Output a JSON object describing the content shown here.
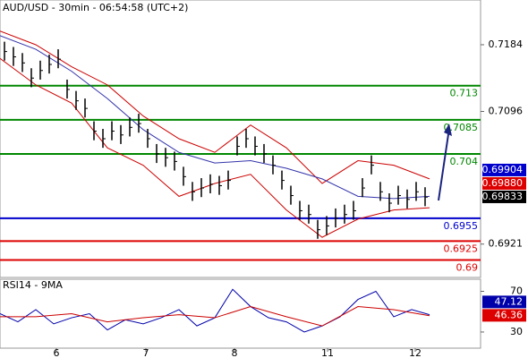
{
  "chart_data": [
    {
      "type": "ohlc",
      "title": "AUD/USD - 30min - 06:54:58 (UTC+2)",
      "x": [
        0.5,
        1.5,
        2.5,
        3.5,
        4.5,
        5.5,
        6.5,
        7.5,
        8.5,
        9.5,
        10.5,
        11.5,
        12.5,
        13.5,
        14.5,
        15.5,
        16.5,
        17.5,
        18.5,
        19.5,
        20.5,
        21.5,
        22.5,
        23.5,
        24.5,
        25.5,
        26.5,
        27.5,
        28.5,
        29.5,
        30.5,
        31.5,
        32.5,
        33.5,
        34.5,
        35.5,
        36.5,
        37.5,
        38.5,
        39.5,
        40.5,
        41.5,
        42.5,
        43.5,
        44.5,
        45.5,
        46.5,
        47.5
      ],
      "high": [
        0.7188,
        0.7181,
        0.7173,
        0.7153,
        0.7163,
        0.7171,
        0.7178,
        0.7138,
        0.7123,
        0.7113,
        0.7083,
        0.7073,
        0.7083,
        0.7078,
        0.7088,
        0.7093,
        0.7073,
        0.7053,
        0.7048,
        0.7043,
        0.7023,
        0.7003,
        0.7008,
        0.7013,
        0.7011,
        0.7018,
        0.7063,
        0.7073,
        0.7063,
        0.7053,
        0.7038,
        0.7018,
        0.6998,
        0.6978,
        0.6973,
        0.6953,
        0.6958,
        0.6968,
        0.6973,
        0.6978,
        0.7008,
        0.7038,
        0.7003,
        0.6988,
        0.6998,
        0.6993,
        0.7003,
        0.6996
      ],
      "low": [
        0.7163,
        0.7156,
        0.7148,
        0.7128,
        0.7138,
        0.7146,
        0.7153,
        0.7113,
        0.7098,
        0.7088,
        0.7058,
        0.7048,
        0.7058,
        0.7053,
        0.7063,
        0.7068,
        0.7048,
        0.7028,
        0.7023,
        0.7018,
        0.6998,
        0.6978,
        0.6983,
        0.6988,
        0.6986,
        0.6993,
        0.7038,
        0.7048,
        0.7038,
        0.7028,
        0.7013,
        0.6993,
        0.6973,
        0.6953,
        0.6948,
        0.6928,
        0.6933,
        0.6943,
        0.6948,
        0.6953,
        0.6983,
        0.7013,
        0.6978,
        0.6963,
        0.6973,
        0.6968,
        0.6978,
        0.6971
      ],
      "close": [
        0.7175,
        0.7168,
        0.716,
        0.714,
        0.715,
        0.7158,
        0.7165,
        0.7125,
        0.711,
        0.71,
        0.707,
        0.706,
        0.707,
        0.7065,
        0.7075,
        0.708,
        0.706,
        0.704,
        0.7035,
        0.703,
        0.701,
        0.699,
        0.6995,
        0.7,
        0.6998,
        0.7005,
        0.705,
        0.706,
        0.705,
        0.704,
        0.7025,
        0.7005,
        0.6985,
        0.6965,
        0.696,
        0.694,
        0.6945,
        0.6955,
        0.696,
        0.6965,
        0.6995,
        0.7025,
        0.699,
        0.6975,
        0.6985,
        0.698,
        0.699,
        0.6983
      ],
      "bar_color": "#000000",
      "lines": [
        {
          "color": "#cc0000",
          "x": [
            0,
            4,
            8,
            12,
            16,
            20,
            24,
            28,
            32,
            36,
            40,
            44,
            48
          ],
          "values": [
            0.7202,
            0.7184,
            0.7155,
            0.7131,
            0.709,
            0.706,
            0.7042,
            0.7078,
            0.7048,
            0.7001,
            0.7031,
            0.7025,
            0.7007
          ]
        },
        {
          "color": "#cc0000",
          "x": [
            0,
            4,
            8,
            12,
            16,
            20,
            24,
            28,
            32,
            36,
            40,
            44,
            48
          ],
          "values": [
            0.7166,
            0.7131,
            0.7107,
            0.7048,
            0.7025,
            0.6984,
            0.7001,
            0.7013,
            0.6966,
            0.693,
            0.6954,
            0.6966,
            0.6969
          ]
        },
        {
          "color": "#3333aa",
          "x": [
            0,
            4,
            8,
            12,
            16,
            20,
            24,
            28,
            32,
            36,
            40,
            44,
            48
          ],
          "values": [
            0.7196,
            0.7178,
            0.7149,
            0.7113,
            0.7072,
            0.7042,
            0.7028,
            0.7031,
            0.7021,
            0.7007,
            0.6984,
            0.6981,
            0.6984
          ]
        }
      ],
      "levels": [
        {
          "value": 0.713,
          "color": "#008800"
        },
        {
          "value": 0.7085,
          "color": "#008800"
        },
        {
          "value": 0.704,
          "color": "#008800"
        },
        {
          "value": 0.6955,
          "color": "#0000cc"
        },
        {
          "value": 0.6925,
          "color": "#dd0000"
        },
        {
          "value": 0.69,
          "color": "#dd0000"
        }
      ],
      "price_markers": [
        {
          "value": 0.69904,
          "color": "#0000cc"
        },
        {
          "value": 0.6988,
          "label": "0.69880",
          "color": "#dd0000"
        },
        {
          "value": 0.69833,
          "color": "#000000"
        }
      ],
      "xlim": [
        0,
        53.7
      ],
      "ylim": [
        0.6877,
        0.7243
      ],
      "yticks": [
        0.7184,
        0.7096,
        0.6921
      ],
      "xticks": [
        {
          "value": 6.3,
          "label": "6"
        },
        {
          "value": 16.3,
          "label": "7"
        },
        {
          "value": 26.2,
          "label": "8"
        },
        {
          "value": 36.6,
          "label": "11"
        },
        {
          "value": 46.4,
          "label": "12"
        }
      ]
    },
    {
      "type": "line",
      "title": "RSI14 - 9MA",
      "series": [
        {
          "color": "#0000aa",
          "x": [
            0,
            2,
            4,
            6,
            8,
            10,
            12,
            14,
            16,
            18,
            20,
            22,
            24,
            26,
            28,
            30,
            32,
            34,
            36,
            38,
            40,
            42,
            44,
            46,
            48
          ],
          "values": [
            48,
            40,
            52,
            38,
            44,
            48,
            32,
            42,
            38,
            44,
            52,
            36,
            44,
            72,
            55,
            44,
            40,
            30,
            36,
            45,
            62,
            70,
            45,
            52,
            47
          ]
        },
        {
          "color": "#cc0000",
          "x": [
            0,
            4,
            8,
            12,
            16,
            20,
            24,
            28,
            32,
            36,
            40,
            44,
            48
          ],
          "values": [
            45,
            45,
            48,
            40,
            44,
            47,
            44,
            55,
            45,
            36,
            55,
            52,
            46
          ]
        }
      ],
      "markers": [
        {
          "value": 47.12,
          "color": "#0000aa"
        },
        {
          "value": 46.36,
          "color": "#dd0000"
        }
      ],
      "xlim": [
        0,
        53.7
      ],
      "ylim": [
        15,
        81
      ],
      "yticks": [
        70,
        30
      ]
    }
  ]
}
